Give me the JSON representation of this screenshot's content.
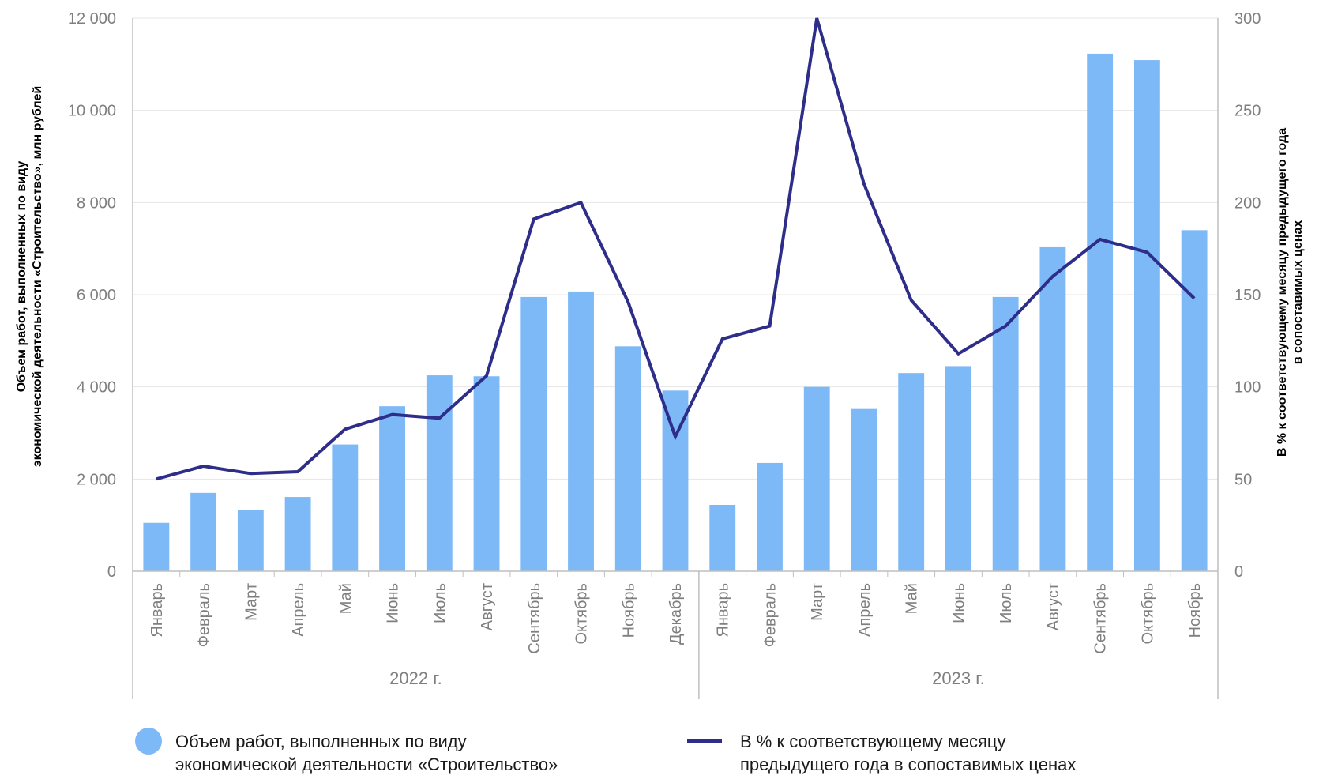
{
  "chart_data": {
    "type": "bar+line",
    "years": [
      {
        "label": "2022 г.",
        "months": 12
      },
      {
        "label": "2023 г.",
        "months": 11
      }
    ],
    "categories": [
      "Январь",
      "Февраль",
      "Март",
      "Апрель",
      "Май",
      "Июнь",
      "Июль",
      "Август",
      "Сентябрь",
      "Октябрь",
      "Ноябрь",
      "Декабрь",
      "Январь",
      "Февраль",
      "Март",
      "Апрель",
      "Май",
      "Июнь",
      "Июль",
      "Август",
      "Сентябрь",
      "Октябрь",
      "Ноябрь"
    ],
    "series": [
      {
        "name": "Объем работ, выполненных по виду экономической деятельности «Строительство»",
        "type": "bar",
        "axis": "left",
        "color": "#7db9f7",
        "values": [
          1050,
          1700,
          1320,
          1610,
          2750,
          3580,
          4250,
          4230,
          5950,
          6070,
          4880,
          3920,
          1440,
          2350,
          4000,
          3520,
          4300,
          4450,
          5950,
          7030,
          11230,
          11090,
          7400
        ]
      },
      {
        "name": "В % к соответствующему месяцу предыдущего года в сопоставимых ценах",
        "type": "line",
        "axis": "right",
        "color": "#2e2e8a",
        "values": [
          50,
          57,
          53,
          54,
          77,
          85,
          83,
          106,
          191,
          200,
          146,
          73,
          126,
          133,
          300,
          210,
          147,
          118,
          133,
          160,
          180,
          173,
          148
        ]
      }
    ],
    "y_left": {
      "label": "Объем работ, выполненных по виду экономической деятельности «Строительство», млн рублей",
      "label_lines": [
        "Объем работ, выполненных по виду",
        "экономической деятельности «Строительство», млн рублей"
      ],
      "range": [
        0,
        12000
      ],
      "ticks": [
        "0",
        "2 000",
        "4 000",
        "6 000",
        "8 000",
        "10 000",
        "12 000"
      ]
    },
    "y_right": {
      "label": "В % к соответствующему месяцу предыдущего года в сопоставимых ценах",
      "label_lines": [
        "В % к соответствующему месяцу предыдущего года",
        "в сопоставимых ценах"
      ],
      "range": [
        0,
        300
      ],
      "ticks": [
        "0",
        "50",
        "100",
        "150",
        "200",
        "250",
        "300"
      ]
    },
    "grid": true,
    "legend": {
      "position": "bottom",
      "bar_lines": [
        "Объем работ, выполненных по виду",
        "экономической деятельности «Строительство»"
      ],
      "line_lines": [
        "В % к соответствующему месяцу",
        "предыдущего года в сопоставимых ценах"
      ]
    }
  }
}
